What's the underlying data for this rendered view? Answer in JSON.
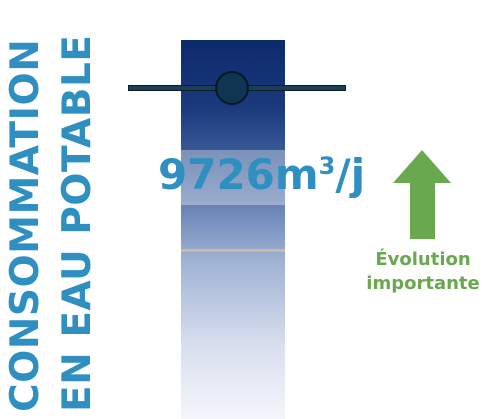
{
  "title": {
    "line1": "CONSOMMATION",
    "line2": "EN EAU POTABLE"
  },
  "gauge": {
    "value": "9726",
    "unit_base": "m",
    "unit_exp": "3",
    "unit_suffix": "/j"
  },
  "trend": {
    "direction": "up",
    "label_line1": "Évolution",
    "label_line2": "importante",
    "color": "#6aa84f"
  },
  "colors": {
    "title": "#2f8fc1",
    "gauge_top": "#0d2a6b",
    "gauge_bottom": "#f4f6fb",
    "marker": "#0f3552"
  }
}
